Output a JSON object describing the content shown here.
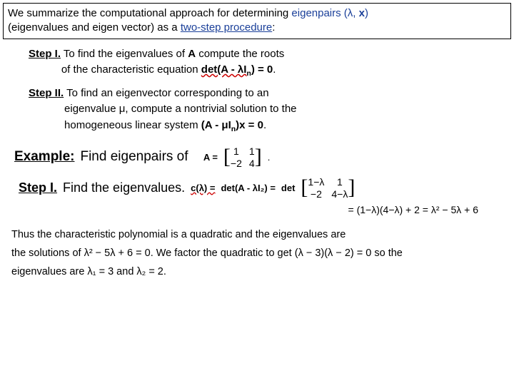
{
  "colors": {
    "text": "#000000",
    "accent": "#1a3f99",
    "wavy": "#c00",
    "bg": "#ffffff"
  },
  "header": {
    "line1_a": "We summarize the computational approach for determining ",
    "line1_b": "eigenpairs",
    "line1_c": " (λ, ",
    "line1_d": "x",
    "line1_e": ")",
    "line2_a": "(eigenvalues and eigen vector) as a ",
    "line2_b": "two-step procedure",
    "line2_c": ":"
  },
  "step1": {
    "label": "Step I.",
    "t1": " To find the eigenvalues of ",
    "A": "A",
    "t2": " compute the roots",
    "t3": "of the characteristic equation ",
    "eq": "det(A - λI",
    "eq_sub": "n",
    "eq_end": ") = 0",
    "period": "."
  },
  "step2": {
    "label": "Step II.",
    "t1": " To find an eigenvector corresponding to an",
    "t2": "eigenvalue μ, compute a nontrivial solution to the",
    "t3": "homogeneous linear system  ",
    "eq": "(A - μI",
    "eq_sub": "n",
    "eq_end": ")x = 0",
    "period": "."
  },
  "example": {
    "label": "Example:",
    "text": "Find eigenpairs of",
    "Aeq": "A =",
    "matrix": {
      "a11": "1",
      "a12": "1",
      "a21": "−2",
      "a22": "4"
    },
    "period": "."
  },
  "stepIsolve": {
    "label": "Step I.",
    "text": "Find the eigenvalues.",
    "c_eq": "c(λ) =",
    "det_eq": "det(A - λI₂) =",
    "det_word": "det",
    "matrix": {
      "a11": "1−λ",
      "a12": "1",
      "a21": "−2",
      "a22": "4−λ"
    }
  },
  "calc": {
    "line": "= (1−λ)(4−λ) + 2 = λ² − 5λ + 6"
  },
  "conclusion": {
    "t1": "Thus the characteristic polynomial is a quadratic and the eigenvalues are",
    "t2a": "the solutions of ",
    "poly": "λ² − 5λ + 6 = 0",
    "t2b": ". We factor the quadratic to get ",
    "factored": "(λ − 3)(λ − 2) = 0",
    "t2c": " so the",
    "t3a": "eigenvalues are ",
    "ev1": "λ₁ = 3",
    "t3b": " and ",
    "ev2": "λ₂ = 2."
  }
}
